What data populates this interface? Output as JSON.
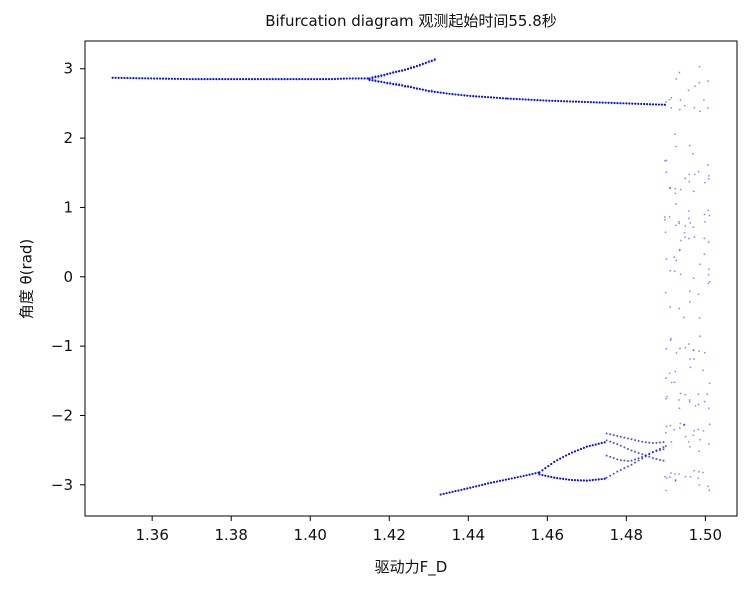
{
  "chart_data": {
    "type": "scatter",
    "title": "Bifurcation diagram   观测起始时间55.8秒",
    "xlabel": "驱动力F_D",
    "ylabel": "角度 θ(rad)",
    "xlim": [
      1.343,
      1.508
    ],
    "ylim": [
      -3.45,
      3.4
    ],
    "xticks": [
      1.36,
      1.38,
      1.4,
      1.42,
      1.44,
      1.46,
      1.48,
      1.5
    ],
    "xtick_labels": [
      "1.36",
      "1.38",
      "1.40",
      "1.42",
      "1.44",
      "1.46",
      "1.48",
      "1.50"
    ],
    "yticks": [
      3,
      2,
      1,
      0,
      -1,
      -2,
      -3
    ],
    "ytick_labels": [
      "3",
      "2",
      "1",
      "0",
      "−1",
      "−2",
      "−3"
    ],
    "grid": false,
    "marker_color": "#0000ee",
    "series": [
      {
        "branch": "upper-stable",
        "x": [
          1.35,
          1.36,
          1.37,
          1.38,
          1.39,
          1.4,
          1.405,
          1.41,
          1.415
        ],
        "y": [
          2.87,
          2.86,
          2.85,
          2.85,
          2.85,
          2.85,
          2.85,
          2.86,
          2.86
        ]
      },
      {
        "branch": "upper-period2-high",
        "x": [
          1.415,
          1.42,
          1.425,
          1.43,
          1.432
        ],
        "y": [
          2.86,
          2.93,
          3.0,
          3.1,
          3.14
        ]
      },
      {
        "branch": "upper-period2-low",
        "x": [
          1.415,
          1.42,
          1.425,
          1.43,
          1.435,
          1.44,
          1.445,
          1.45
        ],
        "y": [
          2.84,
          2.79,
          2.74,
          2.68,
          2.64,
          2.61,
          2.59,
          2.57
        ]
      },
      {
        "branch": "upper-continued",
        "x": [
          1.45,
          1.46,
          1.47,
          1.48,
          1.49
        ],
        "y": [
          2.57,
          2.54,
          2.52,
          2.5,
          2.48
        ]
      },
      {
        "branch": "lower-rising",
        "x": [
          1.433,
          1.44,
          1.445,
          1.45,
          1.455,
          1.458
        ],
        "y": [
          -3.14,
          -3.05,
          -2.98,
          -2.92,
          -2.86,
          -2.82
        ]
      },
      {
        "branch": "lower-period2-high",
        "x": [
          1.458,
          1.462,
          1.466,
          1.47,
          1.475
        ],
        "y": [
          -2.82,
          -2.66,
          -2.54,
          -2.45,
          -2.38
        ]
      },
      {
        "branch": "lower-period2-low",
        "x": [
          1.458,
          1.462,
          1.466,
          1.47,
          1.475
        ],
        "y": [
          -2.85,
          -2.9,
          -2.93,
          -2.94,
          -2.91
        ]
      },
      {
        "branch": "lower-period4",
        "x": [
          1.475,
          1.478,
          1.481,
          1.484,
          1.487,
          1.49
        ],
        "y_sets": [
          [
            -2.26,
            -2.3,
            -2.34,
            -2.38,
            -2.4,
            -2.38
          ],
          [
            -2.36,
            -2.42,
            -2.5,
            -2.56,
            -2.62,
            -2.66
          ],
          [
            -2.58,
            -2.64,
            -2.66,
            -2.6,
            -2.52,
            -2.48
          ],
          [
            -2.9,
            -2.8,
            -2.72,
            -2.62,
            -2.52,
            -2.44
          ]
        ]
      },
      {
        "branch": "chaotic-band",
        "x_range": [
          1.49,
          1.501
        ],
        "y_bands": [
          [
            2.2,
            3.05
          ],
          [
            -3.1,
            -2.8
          ],
          [
            -2.5,
            -2.1
          ],
          [
            -1.9,
            -1.3
          ],
          [
            -1.2,
            -0.8
          ],
          [
            -0.6,
            0.6
          ],
          [
            0.5,
            1.0
          ],
          [
            1.2,
            1.9
          ],
          [
            -3.1,
            3.0
          ]
        ]
      }
    ]
  }
}
